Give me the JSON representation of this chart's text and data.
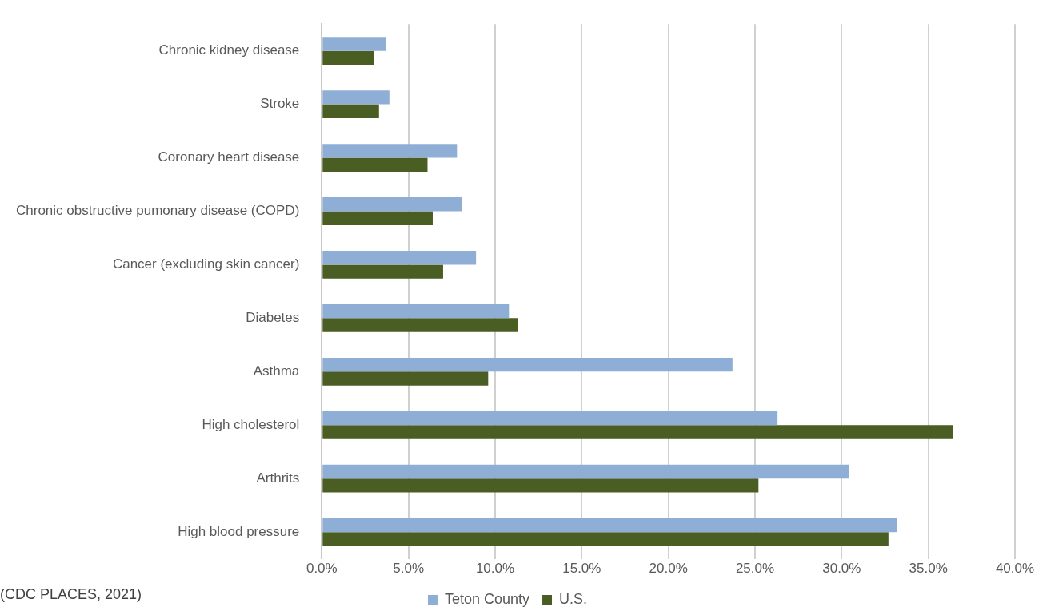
{
  "chart_data": {
    "type": "bar",
    "orientation": "horizontal",
    "categories": [
      "Chronic kidney disease",
      "Stroke",
      "Coronary heart disease",
      "Chronic obstructive pumonary disease (COPD)",
      "Cancer (excluding skin cancer)",
      "Diabetes",
      "Asthma",
      "High cholesterol",
      "Arthrits",
      "High blood pressure"
    ],
    "series": [
      {
        "name": "Teton County",
        "color": "#8faed6",
        "values": [
          3.7,
          3.9,
          7.8,
          8.1,
          8.9,
          10.8,
          23.7,
          26.3,
          30.4,
          33.2
        ]
      },
      {
        "name": "U.S.",
        "color": "#4a5e23",
        "values": [
          3.0,
          3.3,
          6.1,
          6.4,
          7.0,
          11.3,
          9.6,
          36.4,
          25.2,
          32.7
        ]
      }
    ],
    "xlim": [
      0,
      40
    ],
    "xticks": [
      {
        "value": 0,
        "label": "0.0%"
      },
      {
        "value": 5,
        "label": "5.0%"
      },
      {
        "value": 10,
        "label": "10.0%"
      },
      {
        "value": 15,
        "label": "15.0%"
      },
      {
        "value": 20,
        "label": "20.0%"
      },
      {
        "value": 25,
        "label": "25.0%"
      },
      {
        "value": 30,
        "label": "30.0%"
      },
      {
        "value": 35,
        "label": "35.0%"
      },
      {
        "value": 40,
        "label": "40.0%"
      }
    ],
    "grid": "x",
    "legend": "bottom",
    "annotations": [
      "(CDC PLACES, 2021)"
    ]
  }
}
